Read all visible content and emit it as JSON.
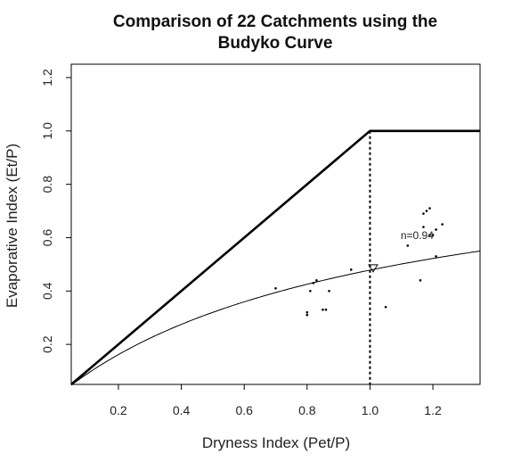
{
  "chart_data": {
    "type": "scatter",
    "title_line1": "Comparison of 22 Catchments using the",
    "title_line2": "Budyko Curve",
    "xlabel": "Dryness Index (Pet/P)",
    "ylabel": "Evaporative Index (Et/P)",
    "xlim": [
      0.05,
      1.35
    ],
    "ylim": [
      0.05,
      1.25
    ],
    "xticks": [
      0.2,
      0.4,
      0.6,
      0.8,
      1.0,
      1.2
    ],
    "xtick_labels": [
      "0.2",
      "0.4",
      "0.6",
      "0.8",
      "1.0",
      "1.2"
    ],
    "yticks": [
      0.2,
      0.4,
      0.6,
      0.8,
      1.0,
      1.2
    ],
    "ytick_labels": [
      "0.2",
      "0.4",
      "0.6",
      "0.8",
      "1.0",
      "1.2"
    ],
    "grid": false,
    "limit_line": [
      [
        0.05,
        0.05
      ],
      [
        1.0,
        1.0
      ],
      [
        1.35,
        1.0
      ]
    ],
    "divider_x": 1.0,
    "curve_n": 0.94,
    "annotation": {
      "text": "n=0.94",
      "x": 1.15,
      "y": 0.595
    },
    "mean_marker": {
      "x": 1.01,
      "y": 0.485
    },
    "points": [
      {
        "x": 0.7,
        "y": 0.41
      },
      {
        "x": 0.8,
        "y": 0.32
      },
      {
        "x": 0.8,
        "y": 0.31
      },
      {
        "x": 0.81,
        "y": 0.4
      },
      {
        "x": 0.82,
        "y": 0.43
      },
      {
        "x": 0.83,
        "y": 0.44
      },
      {
        "x": 0.85,
        "y": 0.33
      },
      {
        "x": 0.86,
        "y": 0.33
      },
      {
        "x": 0.87,
        "y": 0.4
      },
      {
        "x": 0.94,
        "y": 0.48
      },
      {
        "x": 1.05,
        "y": 0.34
      },
      {
        "x": 1.12,
        "y": 0.57
      },
      {
        "x": 1.16,
        "y": 0.44
      },
      {
        "x": 1.17,
        "y": 0.69
      },
      {
        "x": 1.17,
        "y": 0.64
      },
      {
        "x": 1.18,
        "y": 0.7
      },
      {
        "x": 1.19,
        "y": 0.71
      },
      {
        "x": 1.2,
        "y": 0.61
      },
      {
        "x": 1.21,
        "y": 0.53
      },
      {
        "x": 1.21,
        "y": 0.63
      },
      {
        "x": 1.23,
        "y": 0.65
      },
      {
        "x": 1.19,
        "y": 0.61
      }
    ]
  }
}
